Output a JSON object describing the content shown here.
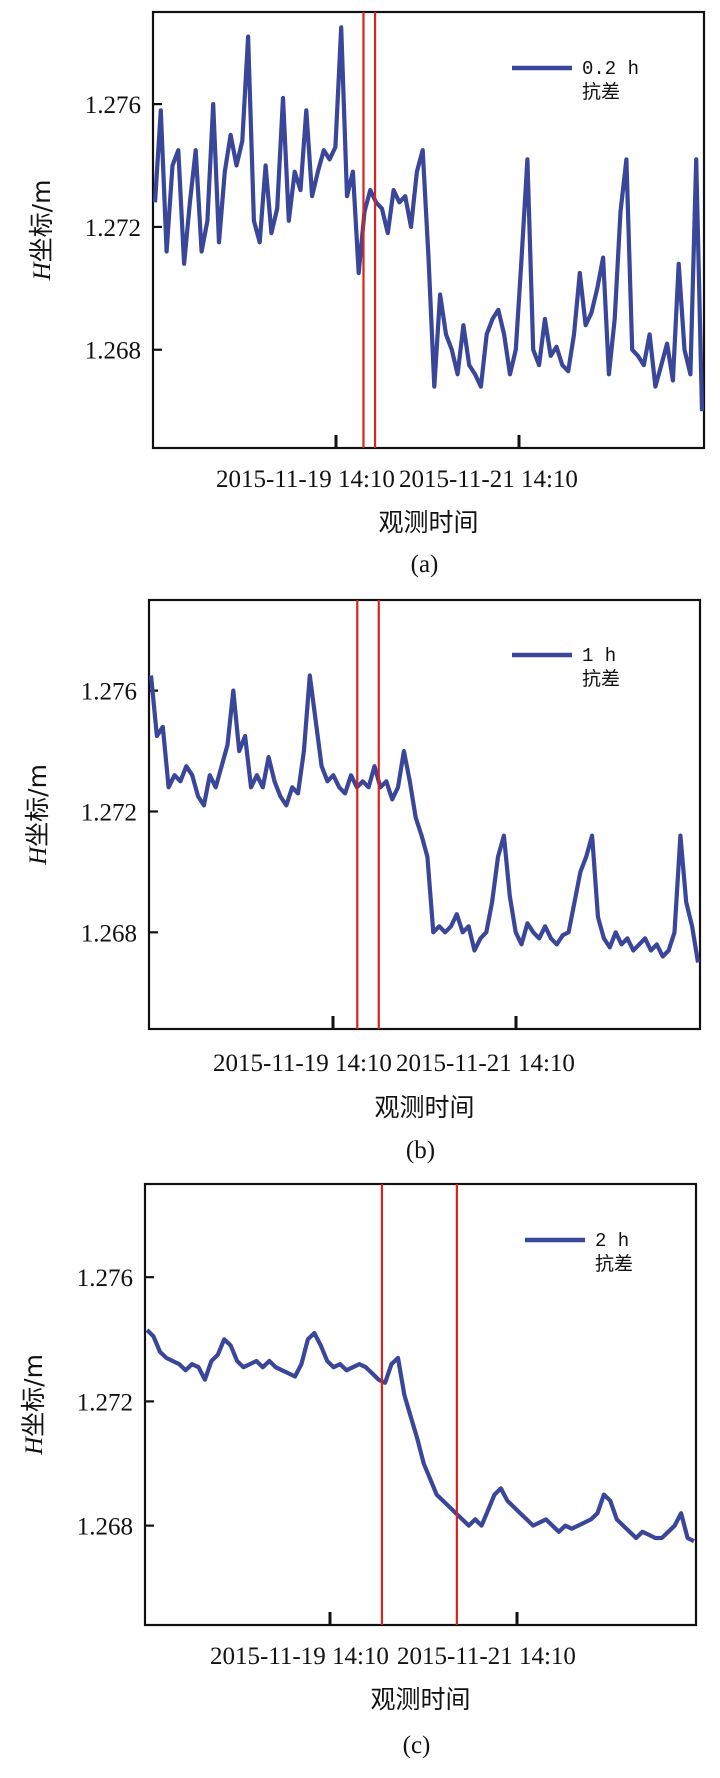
{
  "chart_data": [
    {
      "type": "line",
      "panel_label": "(a)",
      "ylabel_italic": "H",
      "ylabel_rest": "坐标/m",
      "xlabel": "观测时间",
      "x_tick_labels": [
        "2015-11-19 14:10",
        "2015-11-21 14:10"
      ],
      "y_ticks": [
        "1.276",
        "1.272",
        "1.268"
      ],
      "y_tick_values": [
        1.276,
        1.272,
        1.268
      ],
      "ylim": [
        1.2648,
        1.279
      ],
      "legend_line1": "0.2 h",
      "legend_line2": "抗差",
      "series_color": "#3a4699",
      "marker_color": "#d9231d",
      "series": [
        {
          "name": "0.2 h",
          "values": [
            1.2728,
            1.2758,
            1.2712,
            1.274,
            1.2745,
            1.2708,
            1.2728,
            1.2745,
            1.2712,
            1.2722,
            1.276,
            1.2715,
            1.2738,
            1.275,
            1.274,
            1.2748,
            1.2782,
            1.2722,
            1.2715,
            1.274,
            1.2718,
            1.2726,
            1.2762,
            1.2722,
            1.2738,
            1.2732,
            1.2758,
            1.273,
            1.2738,
            1.2745,
            1.2742,
            1.2746,
            1.2785,
            1.273,
            1.2738,
            1.2705,
            1.2725,
            1.2732,
            1.2728,
            1.2726,
            1.2718,
            1.2732,
            1.2728,
            1.273,
            1.272,
            1.2738,
            1.2745,
            1.271,
            1.2668,
            1.2698,
            1.2685,
            1.268,
            1.2672,
            1.2688,
            1.2675,
            1.2672,
            1.2668,
            1.2685,
            1.269,
            1.2693,
            1.2685,
            1.2672,
            1.268,
            1.271,
            1.2742,
            1.268,
            1.2675,
            1.269,
            1.2678,
            1.2681,
            1.2675,
            1.2673,
            1.2685,
            1.2705,
            1.2688,
            1.2692,
            1.27,
            1.271,
            1.2672,
            1.269,
            1.2725,
            1.2742,
            1.268,
            1.2678,
            1.2675,
            1.2685,
            1.2668,
            1.2675,
            1.2682,
            1.267,
            1.2708,
            1.268,
            1.2672,
            1.2742,
            1.266
          ]
        }
      ],
      "marker_lines": [
        0.382,
        0.403
      ]
    },
    {
      "type": "line",
      "panel_label": "(b)",
      "ylabel_italic": "H",
      "ylabel_rest": "坐标/m",
      "xlabel": "观测时间",
      "x_tick_labels": [
        "2015-11-19 14:10",
        "2015-11-21 14:10"
      ],
      "y_ticks": [
        "1.276",
        "1.272",
        "1.268"
      ],
      "y_tick_values": [
        1.276,
        1.272,
        1.268
      ],
      "ylim": [
        1.2648,
        1.279
      ],
      "legend_line1": "1 h",
      "legend_line2": "抗差",
      "series_color": "#3a4699",
      "marker_color": "#d9231d",
      "series": [
        {
          "name": "1 h",
          "values": [
            1.2765,
            1.2745,
            1.2748,
            1.2728,
            1.2732,
            1.273,
            1.2735,
            1.2732,
            1.2725,
            1.2722,
            1.2732,
            1.2728,
            1.2735,
            1.2742,
            1.276,
            1.274,
            1.2745,
            1.2728,
            1.2732,
            1.2728,
            1.2738,
            1.273,
            1.2725,
            1.2722,
            1.2728,
            1.2726,
            1.274,
            1.2765,
            1.275,
            1.2735,
            1.273,
            1.2732,
            1.2728,
            1.2726,
            1.2732,
            1.2728,
            1.273,
            1.2728,
            1.2735,
            1.2728,
            1.273,
            1.2724,
            1.2728,
            1.274,
            1.273,
            1.2718,
            1.2712,
            1.2705,
            1.268,
            1.2682,
            1.268,
            1.2682,
            1.2686,
            1.268,
            1.2682,
            1.2674,
            1.2678,
            1.268,
            1.269,
            1.2705,
            1.2712,
            1.2692,
            1.268,
            1.2676,
            1.2683,
            1.268,
            1.2678,
            1.2682,
            1.2678,
            1.2676,
            1.2679,
            1.268,
            1.269,
            1.27,
            1.2705,
            1.2712,
            1.2685,
            1.2678,
            1.2675,
            1.268,
            1.2676,
            1.2678,
            1.2674,
            1.2676,
            1.2678,
            1.2674,
            1.2676,
            1.2672,
            1.2674,
            1.268,
            1.2712,
            1.269,
            1.2682,
            1.267
          ]
        }
      ],
      "marker_lines": [
        0.378,
        0.417
      ]
    },
    {
      "type": "line",
      "panel_label": "(c)",
      "ylabel_italic": "H",
      "ylabel_rest": "坐标/m",
      "xlabel": "观测时间",
      "x_tick_labels": [
        "2015-11-19 14:10",
        "2015-11-21 14:10"
      ],
      "y_ticks": [
        "1.276",
        "1.272",
        "1.268"
      ],
      "y_tick_values": [
        1.276,
        1.272,
        1.268
      ],
      "ylim": [
        1.2648,
        1.279
      ],
      "legend_line1": "2 h",
      "legend_line2": "抗差",
      "series_color": "#3a4699",
      "marker_color": "#d9231d",
      "series": [
        {
          "name": "2 h",
          "values": [
            1.2743,
            1.2741,
            1.2736,
            1.2734,
            1.2733,
            1.2732,
            1.273,
            1.2732,
            1.2731,
            1.2727,
            1.2733,
            1.2735,
            1.274,
            1.2738,
            1.2733,
            1.2731,
            1.2732,
            1.2733,
            1.2731,
            1.2733,
            1.2731,
            1.273,
            1.2729,
            1.2728,
            1.2732,
            1.274,
            1.2742,
            1.2738,
            1.2733,
            1.2731,
            1.2732,
            1.273,
            1.2731,
            1.2732,
            1.2731,
            1.2729,
            1.2727,
            1.2726,
            1.2732,
            1.2734,
            1.2722,
            1.2715,
            1.2708,
            1.27,
            1.2695,
            1.269,
            1.2688,
            1.2686,
            1.2684,
            1.2682,
            1.268,
            1.2682,
            1.268,
            1.2685,
            1.269,
            1.2692,
            1.2688,
            1.2686,
            1.2684,
            1.2682,
            1.268,
            1.2681,
            1.2682,
            1.268,
            1.2678,
            1.268,
            1.2679,
            1.268,
            1.2681,
            1.2682,
            1.2684,
            1.269,
            1.2688,
            1.2682,
            1.268,
            1.2678,
            1.2676,
            1.2678,
            1.2677,
            1.2676,
            1.2676,
            1.2678,
            1.268,
            1.2684,
            1.2676,
            1.2675
          ]
        }
      ],
      "marker_lines": [
        0.43,
        0.566
      ]
    }
  ]
}
